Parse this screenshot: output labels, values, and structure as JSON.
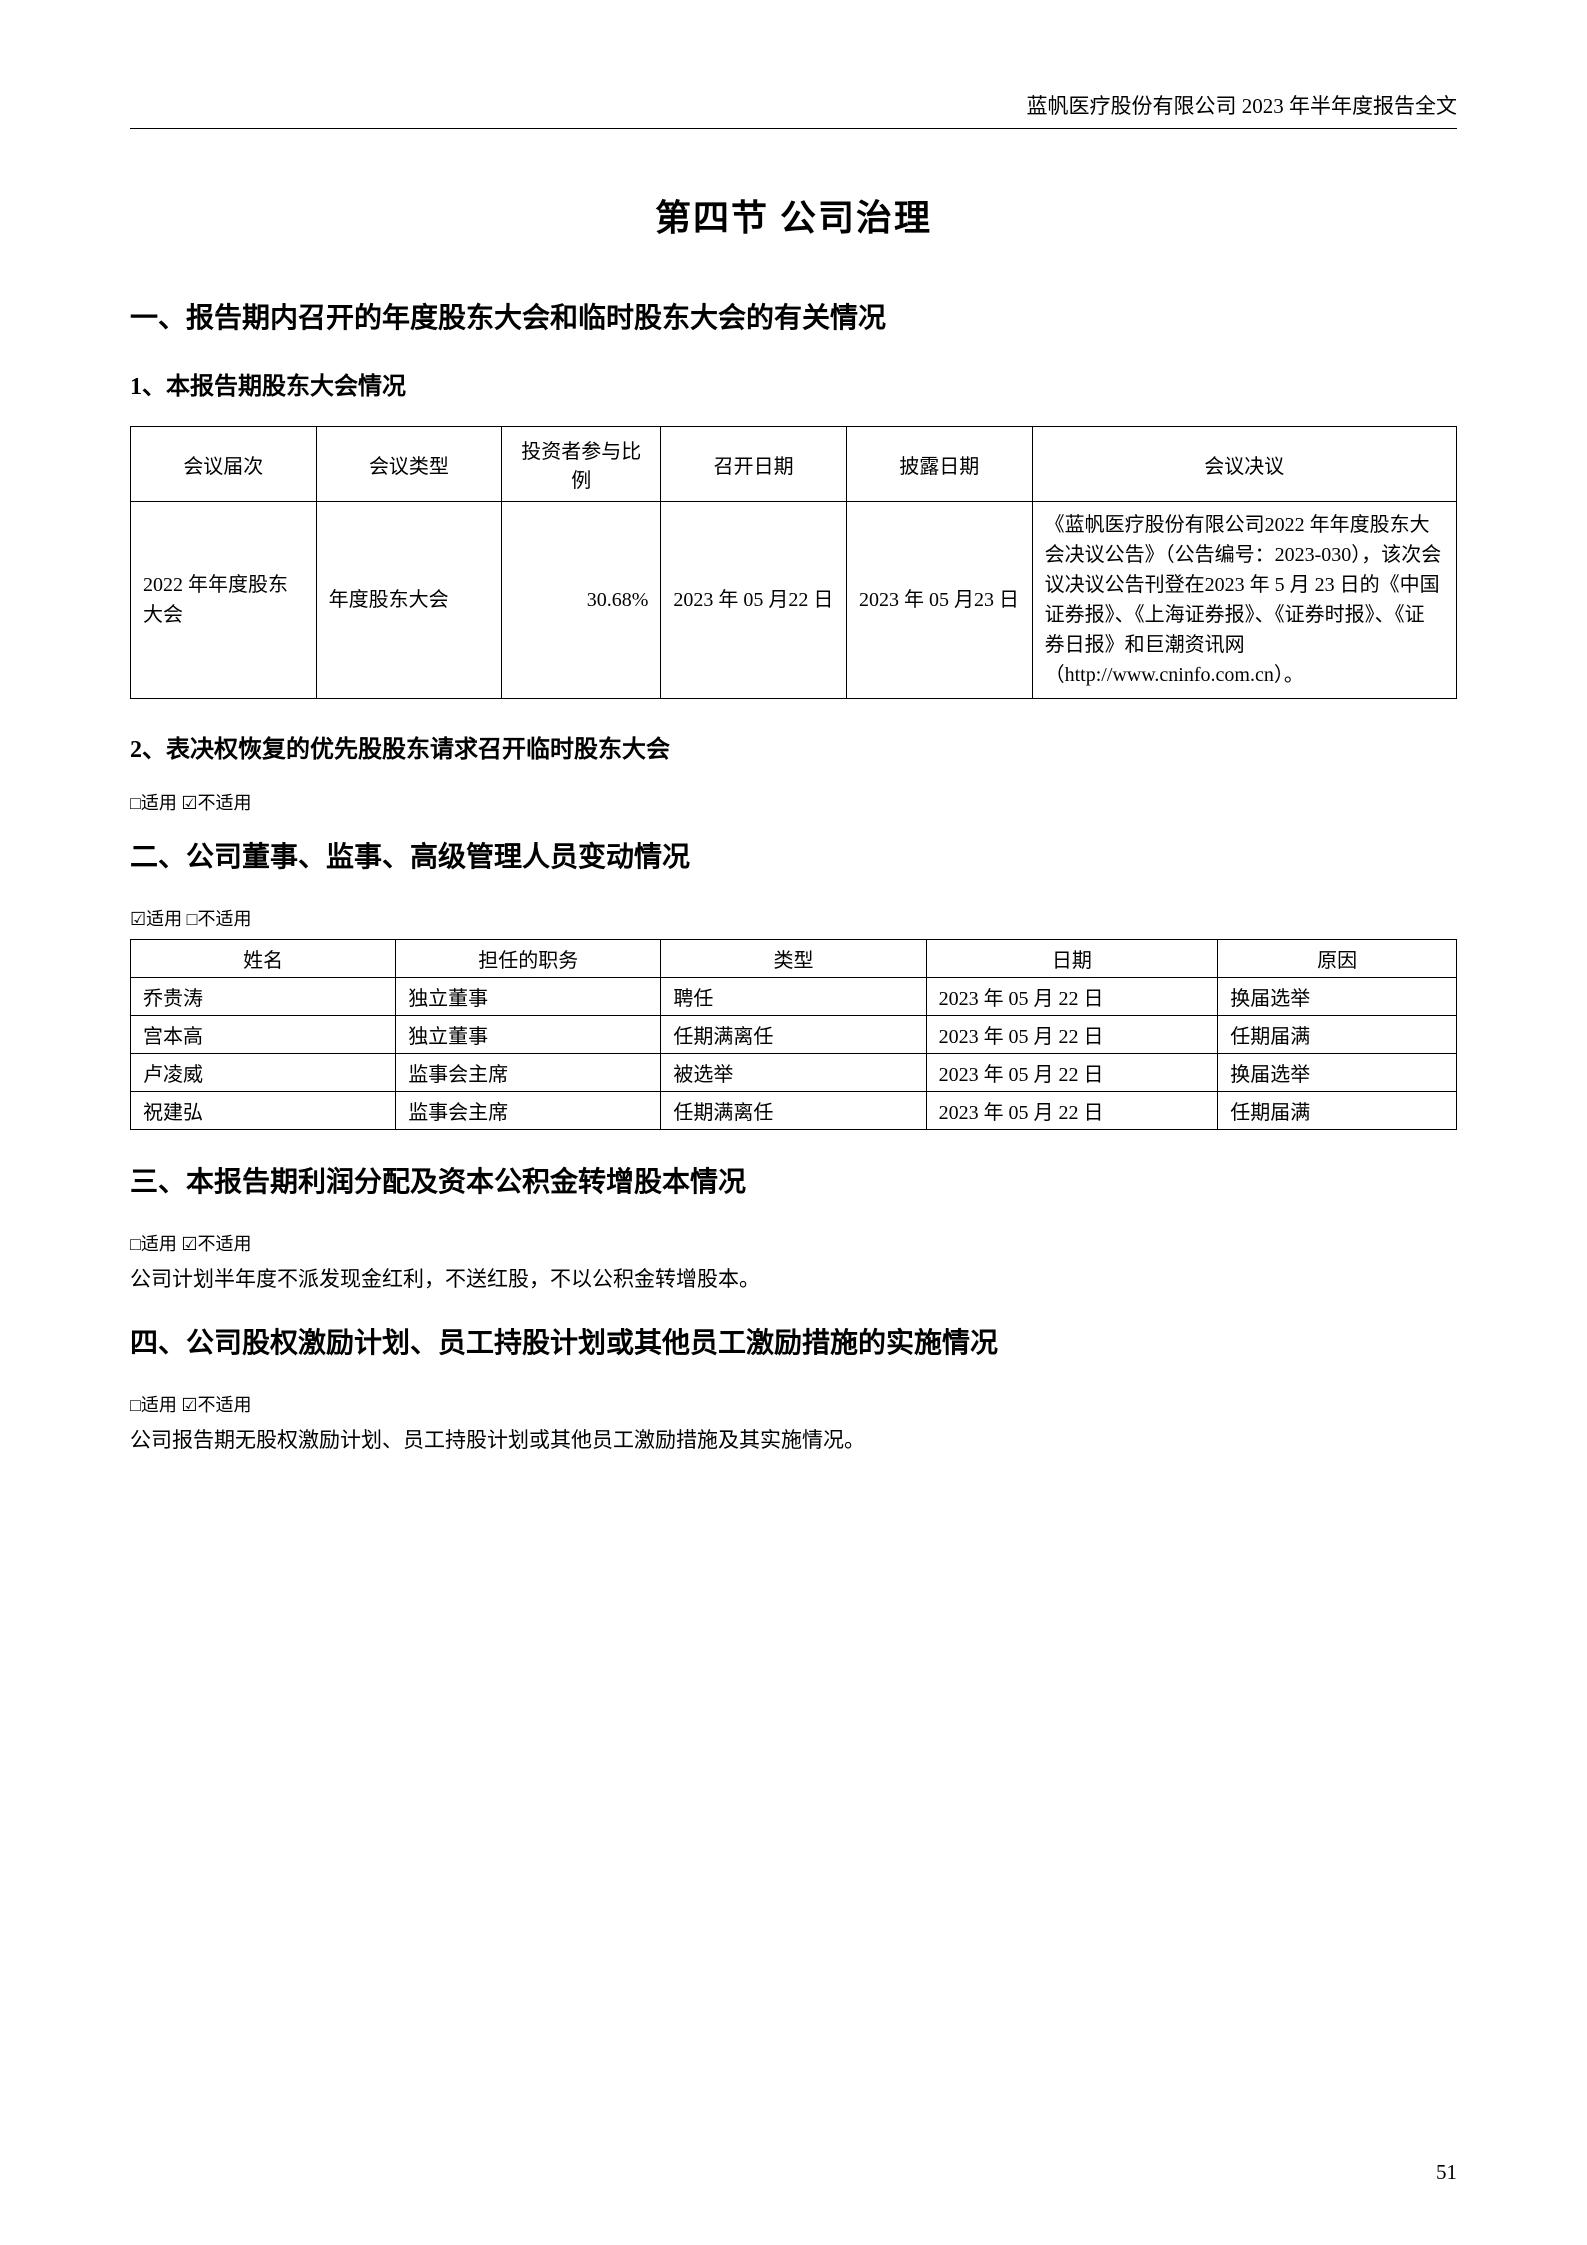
{
  "header": {
    "text": "蓝帆医疗股份有限公司 2023 年半年度报告全文"
  },
  "main_title": "第四节  公司治理",
  "section1": {
    "heading": "一、报告期内召开的年度股东大会和临时股东大会的有关情况",
    "sub1": {
      "heading": "1、本报告期股东大会情况",
      "table": {
        "columns": [
          "会议届次",
          "会议类型",
          "投资者参与比例",
          "召开日期",
          "披露日期",
          "会议决议"
        ],
        "col_widths": [
          "14%",
          "14%",
          "12%",
          "14%",
          "14%",
          "32%"
        ],
        "rows": [
          {
            "session": "2022 年年度股东大会",
            "type": "年度股东大会",
            "ratio": "30.68%",
            "date_held": "2023 年 05 月22 日",
            "date_disclosed": "2023 年 05 月23 日",
            "resolution": "《蓝帆医疗股份有限公司2022 年年度股东大会决议公告》（公告编号：2023-030），该次会议决议公告刊登在2023 年 5 月 23 日的《中国证券报》、《上海证券报》、《证券时报》、《证券日报》和巨潮资讯网（http://www.cninfo.com.cn）。"
          }
        ]
      }
    },
    "sub2": {
      "heading": "2、表决权恢复的优先股股东请求召开临时股东大会",
      "applicable": "□适用 ☑不适用"
    }
  },
  "section2": {
    "heading": "二、公司董事、监事、高级管理人员变动情况",
    "applicable": "☑适用 □不适用",
    "table": {
      "columns": [
        "姓名",
        "担任的职务",
        "类型",
        "日期",
        "原因"
      ],
      "col_widths": [
        "20%",
        "20%",
        "20%",
        "22%",
        "18%"
      ],
      "rows": [
        {
          "name": "乔贵涛",
          "position": "独立董事",
          "type": "聘任",
          "date": "2023 年 05 月 22 日",
          "reason": "换届选举"
        },
        {
          "name": "宫本高",
          "position": "独立董事",
          "type": "任期满离任",
          "date": "2023 年 05 月 22 日",
          "reason": "任期届满"
        },
        {
          "name": "卢凌威",
          "position": "监事会主席",
          "type": "被选举",
          "date": "2023 年 05 月 22 日",
          "reason": "换届选举"
        },
        {
          "name": "祝建弘",
          "position": "监事会主席",
          "type": "任期满离任",
          "date": "2023 年 05 月 22 日",
          "reason": "任期届满"
        }
      ]
    }
  },
  "section3": {
    "heading": "三、本报告期利润分配及资本公积金转增股本情况",
    "applicable": "□适用 ☑不适用",
    "text": "公司计划半年度不派发现金红利，不送红股，不以公积金转增股本。"
  },
  "section4": {
    "heading": "四、公司股权激励计划、员工持股计划或其他员工激励措施的实施情况",
    "applicable": "□适用 ☑不适用",
    "text": "公司报告期无股权激励计划、员工持股计划或其他员工激励措施及其实施情况。"
  },
  "page_number": "51",
  "styling": {
    "background_color": "#ffffff",
    "text_color": "#000000",
    "border_color": "#000000",
    "font_family": "SimSun",
    "header_fontsize": 21,
    "title_fontsize": 36,
    "section_fontsize": 28,
    "subsection_fontsize": 24,
    "table_fontsize": 20,
    "body_fontsize": 21
  }
}
